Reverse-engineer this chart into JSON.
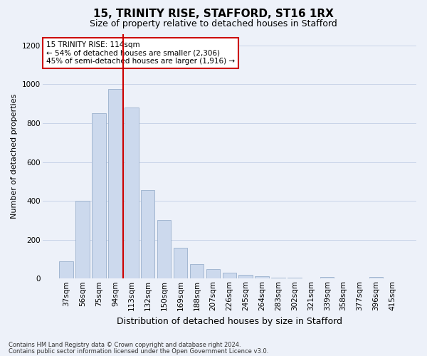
{
  "title": "15, TRINITY RISE, STAFFORD, ST16 1RX",
  "subtitle": "Size of property relative to detached houses in Stafford",
  "xlabel": "Distribution of detached houses by size in Stafford",
  "ylabel": "Number of detached properties",
  "footnote1": "Contains HM Land Registry data © Crown copyright and database right 2024.",
  "footnote2": "Contains public sector information licensed under the Open Government Licence v3.0.",
  "categories": [
    "37sqm",
    "56sqm",
    "75sqm",
    "94sqm",
    "113sqm",
    "132sqm",
    "150sqm",
    "169sqm",
    "188sqm",
    "207sqm",
    "226sqm",
    "245sqm",
    "264sqm",
    "283sqm",
    "302sqm",
    "321sqm",
    "339sqm",
    "358sqm",
    "377sqm",
    "396sqm",
    "415sqm"
  ],
  "values": [
    90,
    400,
    850,
    975,
    880,
    455,
    300,
    160,
    75,
    50,
    30,
    18,
    12,
    5,
    3,
    0,
    10,
    0,
    0,
    10,
    0
  ],
  "bar_color": "#ccd9ed",
  "bar_edge_color": "#9ab0cc",
  "highlight_index": 4,
  "highlight_line_color": "#cc0000",
  "annotation_text": "15 TRINITY RISE: 114sqm\n← 54% of detached houses are smaller (2,306)\n45% of semi-detached houses are larger (1,916) →",
  "annotation_box_facecolor": "#ffffff",
  "annotation_box_edgecolor": "#cc0000",
  "ylim": [
    0,
    1260
  ],
  "yticks": [
    0,
    200,
    400,
    600,
    800,
    1000,
    1200
  ],
  "grid_color": "#c8d4e8",
  "bg_color": "#edf1f9",
  "title_fontsize": 11,
  "subtitle_fontsize": 9,
  "xlabel_fontsize": 9,
  "ylabel_fontsize": 8,
  "tick_fontsize": 7.5,
  "annot_fontsize": 7.5,
  "footnote_fontsize": 6
}
